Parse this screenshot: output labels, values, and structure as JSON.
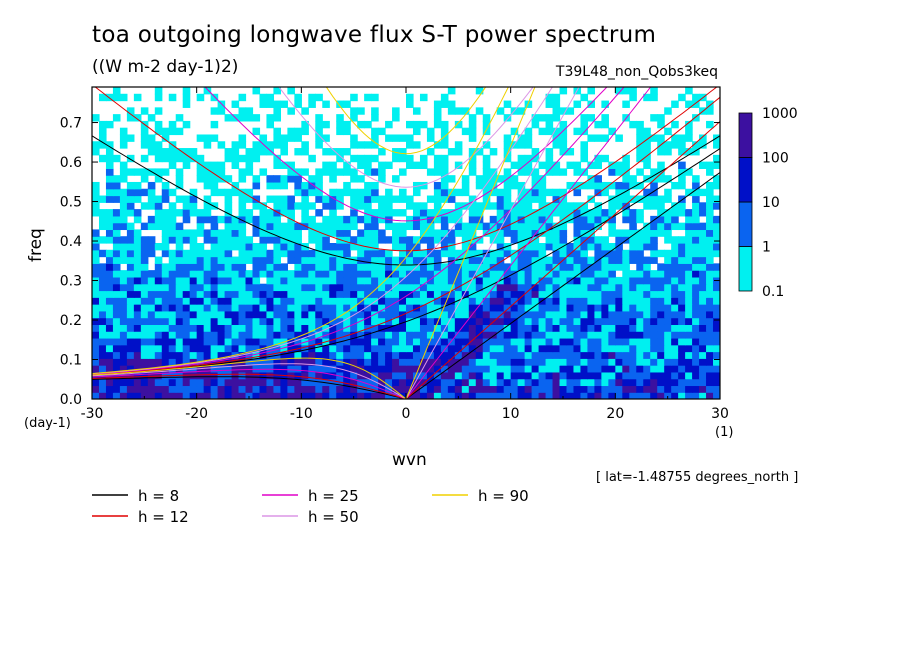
{
  "page": {
    "title": "toa outgoing longwave flux S-T power spectrum",
    "units": "((W m-2 day-1)2)",
    "experiment": "T39L48_non_Qobs3keq",
    "lat_note": "[ lat=-1.48755 degrees_north ]"
  },
  "chart_data": {
    "type": "heatmap",
    "xlabel": "wvn",
    "ylabel": "freq",
    "x_unit": "(1)",
    "y_unit": "(day-1)",
    "xlim": [
      -30,
      30
    ],
    "ylim": [
      0,
      0.79
    ],
    "x_ticks": [
      -30,
      -20,
      -10,
      0,
      10,
      20,
      30
    ],
    "x_tick_labels": [
      "-30",
      "-20",
      "-10",
      "0",
      "10",
      "20",
      "30"
    ],
    "y_ticks": [
      0,
      0.1,
      0.2,
      0.3,
      0.4,
      0.5,
      0.6,
      0.7
    ],
    "y_tick_labels": [
      "0.0",
      "0.1",
      "0.2",
      "0.3",
      "0.4",
      "0.5",
      "0.6",
      "0.7"
    ],
    "grid": false,
    "colorbar": {
      "levels": [
        "0.1",
        "1",
        "10",
        "100",
        "1000"
      ],
      "colors": [
        "#00f0f0",
        "#0a64f0",
        "#0010c8",
        "#3c10a0"
      ]
    },
    "dispersion_curves": [
      {
        "h": "8",
        "color": "#000000"
      },
      {
        "h": "12",
        "color": "#e00000"
      },
      {
        "h": "25",
        "color": "#e000c8"
      },
      {
        "h": "50",
        "color": "#dc96e6"
      },
      {
        "h": "90",
        "color": "#f0d000"
      }
    ],
    "legend": [
      {
        "label": "h =  8",
        "color": "#000000"
      },
      {
        "label": "h = 12",
        "color": "#e00000"
      },
      {
        "label": "h = 25",
        "color": "#e000c8"
      },
      {
        "label": "h = 50",
        "color": "#dc96e6"
      },
      {
        "label": "h = 90",
        "color": "#f0d000"
      }
    ]
  }
}
